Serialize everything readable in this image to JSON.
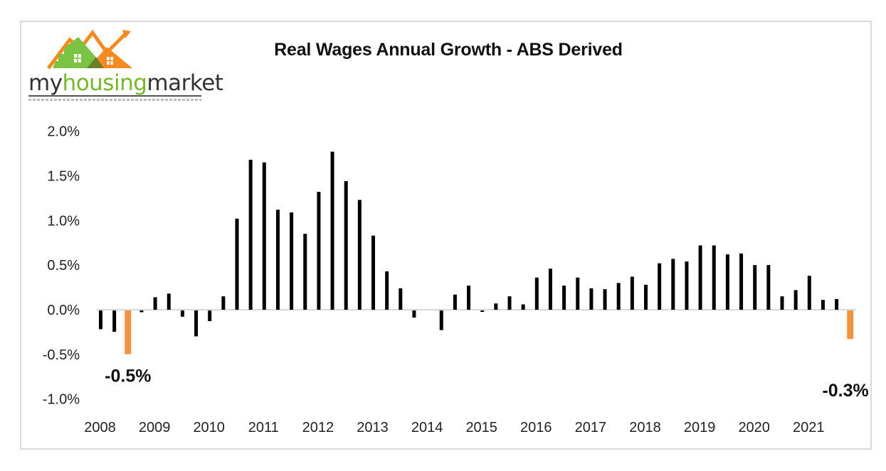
{
  "logo": {
    "prefix": "my",
    "highlight": "housing",
    "suffix": "market",
    "colors": {
      "green": "#7cc243",
      "orange": "#f58a20"
    }
  },
  "chart_data": {
    "type": "bar",
    "title": "Real Wages Annual Growth - ABS Derived",
    "xlabel": "",
    "ylabel": "",
    "ylim": [
      -1.0,
      2.0
    ],
    "yticks": [
      2.0,
      1.5,
      1.0,
      0.5,
      0.0,
      -0.5,
      -1.0
    ],
    "ytick_labels": [
      "2.0%",
      "1.5%",
      "1.0%",
      "0.5%",
      "0.0%",
      "-0.5%",
      "-1.0%"
    ],
    "xtick_labels": [
      "2008",
      "2009",
      "2010",
      "2011",
      "2012",
      "2013",
      "2014",
      "2015",
      "2016",
      "2017",
      "2018",
      "2019",
      "2020",
      "2021"
    ],
    "frequency": "quarterly",
    "grid": false,
    "legend": null,
    "bar_color": "#000000",
    "highlight_color": "#f5923e",
    "highlight_indices": [
      2,
      55
    ],
    "values": [
      -0.21,
      -0.24,
      -0.49,
      -0.02,
      0.14,
      0.18,
      -0.07,
      -0.29,
      -0.12,
      0.15,
      1.02,
      1.68,
      1.65,
      1.12,
      1.09,
      0.85,
      1.32,
      1.77,
      1.44,
      1.23,
      0.83,
      0.43,
      0.24,
      -0.08,
      0.0,
      -0.22,
      0.17,
      0.27,
      -0.01,
      0.07,
      0.15,
      0.06,
      0.36,
      0.46,
      0.27,
      0.36,
      0.24,
      0.23,
      0.3,
      0.37,
      0.28,
      0.52,
      0.57,
      0.54,
      0.72,
      0.72,
      0.62,
      0.63,
      0.5,
      0.5,
      0.15,
      0.22,
      0.38,
      0.11,
      0.12,
      -0.32
    ],
    "annotations": [
      {
        "text": "-0.5%",
        "index": 2
      },
      {
        "text": "-0.3%",
        "index": 55
      }
    ]
  }
}
